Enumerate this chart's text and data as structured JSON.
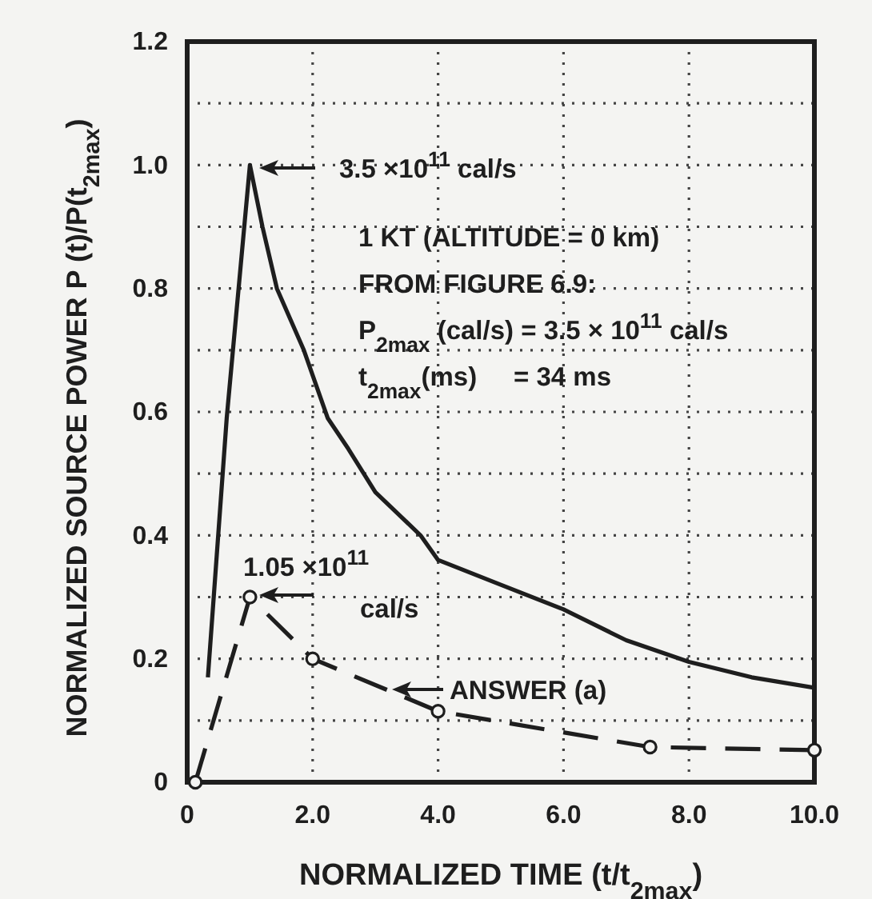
{
  "chart_data": {
    "type": "line",
    "xlabel": "NORMALIZED TIME (t/t$_{2max}$)",
    "ylabel": "NORMALIZED SOURCE POWER P (t)/P(t$_{2max}$)",
    "xlim": [
      0,
      10
    ],
    "ylim": [
      0,
      1.2
    ],
    "xticks": [
      0,
      {
        "value": 2,
        "label": "2.0"
      },
      {
        "value": 4,
        "label": "4.0"
      },
      {
        "value": 6,
        "label": "6.0"
      },
      {
        "value": 8,
        "label": "8.0"
      },
      {
        "value": 10,
        "label": "10.0"
      }
    ],
    "yticks": [
      0,
      {
        "value": 0.1,
        "label": null
      },
      0.2,
      {
        "value": 0.3,
        "label": null
      },
      0.4,
      {
        "value": 0.5,
        "label": null
      },
      0.6,
      {
        "value": 0.7,
        "label": null
      },
      0.8,
      {
        "value": 0.9,
        "label": null
      },
      {
        "value": 1.0,
        "label": "1.0"
      },
      {
        "value": 1.1,
        "label": null
      },
      1.2
    ],
    "grid": true,
    "series": [
      {
        "color": "#1e1e1e",
        "line_style": "solid",
        "marker": "none",
        "x": [
          0.33,
          0.63,
          1,
          1.2,
          1.43,
          1.86,
          2.24,
          2.57,
          3,
          3.72,
          4,
          5,
          6,
          7,
          8,
          9,
          10
        ],
        "values": [
          0.17,
          0.59,
          1,
          0.9,
          0.8,
          0.7,
          0.59,
          0.54,
          0.47,
          0.4,
          0.36,
          0.32,
          0.28,
          0.23,
          0.195,
          0.17,
          0.153
        ]
      },
      {
        "color": "#1e1e1e",
        "line_style": "dashed",
        "marker": "circle",
        "x": [
          0.13,
          1,
          2,
          4,
          7.38,
          10
        ],
        "values": [
          0,
          0.3,
          0.2,
          0.115,
          0.057,
          0.052
        ]
      }
    ],
    "annotations": [
      "3.5 ×10$^{11}$ cal/s",
      "1 KT (ALTITUDE = 0 km)",
      "FROM FIGURE 6.9:",
      "P$_{2max}$ (cal/s) = 3.5 × 10$^{11}$ cal/s",
      "t$_{2max}$(ms)     = 34 ms",
      "1.05 ×10$^{11}$ cal/s",
      "ANSWER (a)"
    ]
  }
}
